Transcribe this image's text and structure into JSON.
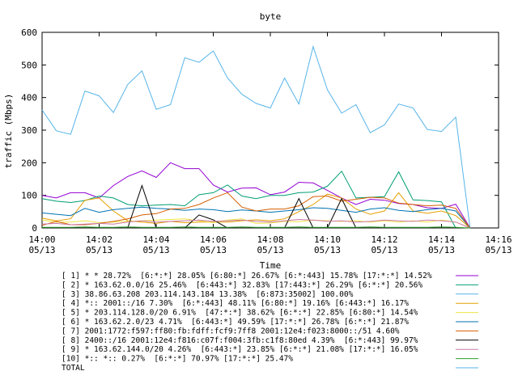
{
  "chart_data": {
    "type": "line",
    "title": "byte",
    "xlabel": "Time",
    "ylabel": "traffic (Mbps)",
    "ylim": [
      0,
      600
    ],
    "y_ticks": [
      0,
      100,
      200,
      300,
      400,
      500,
      600
    ],
    "x_ticks": [
      {
        "time": "14:00",
        "date": "05/13"
      },
      {
        "time": "14:02",
        "date": "05/13"
      },
      {
        "time": "14:04",
        "date": "05/13"
      },
      {
        "time": "14:06",
        "date": "05/13"
      },
      {
        "time": "14:08",
        "date": "05/13"
      },
      {
        "time": "14:10",
        "date": "05/13"
      },
      {
        "time": "14:12",
        "date": "05/13"
      },
      {
        "time": "14:14",
        "date": "05/13"
      },
      {
        "time": "14:16",
        "date": "05/13"
      }
    ],
    "x_minutes": [
      "14:00",
      "14:00:30",
      "14:01",
      "14:01:30",
      "14:02",
      "14:02:30",
      "14:03",
      "14:03:30",
      "14:04",
      "14:04:30",
      "14:05",
      "14:05:30",
      "14:06",
      "14:06:30",
      "14:07",
      "14:07:30",
      "14:08",
      "14:08:30",
      "14:09",
      "14:09:30",
      "14:10",
      "14:10:30",
      "14:11",
      "14:11:30",
      "14:12",
      "14:12:30",
      "14:13",
      "14:13:30",
      "14:14",
      "14:14:30",
      "14:15"
    ],
    "grid": false,
    "legend_position": "bottom",
    "series": [
      {
        "name": "[ 1] * * 28.72%  [6:*:*] 28.05% [6:80:*] 26.67% [6:*:443] 15.78% [17:*:*] 14.52%",
        "color": "#9400d3",
        "values": [
          100,
          92,
          108,
          108,
          92,
          130,
          158,
          175,
          155,
          200,
          182,
          182,
          132,
          110,
          122,
          123,
          102,
          110,
          140,
          138,
          115,
          92,
          72,
          88,
          85,
          75,
          72,
          62,
          60,
          73,
          0
        ]
      },
      {
        "name": "[ 2] * 163.62.0.0/16 25.46%  [6:443:*] 32.83% [17:443:*] 26.29% [6:*:*] 20.56%",
        "color": "#009e73",
        "values": [
          90,
          82,
          78,
          84,
          98,
          92,
          72,
          68,
          70,
          72,
          68,
          102,
          108,
          132,
          98,
          90,
          100,
          100,
          108,
          110,
          128,
          174,
          92,
          94,
          96,
          172,
          86,
          84,
          80,
          0,
          0
        ]
      },
      {
        "name": "[ 3] 38.86.63.208 203.114.143.184 13.38%  [6:873:35002] 100.00%",
        "color": "#56b4e9",
        "values": [
          362,
          298,
          287,
          420,
          405,
          354,
          440,
          482,
          364,
          378,
          522,
          508,
          543,
          460,
          410,
          382,
          368,
          460,
          380,
          556,
          424,
          352,
          378,
          292,
          316,
          380,
          368,
          302,
          296,
          340,
          0
        ]
      },
      {
        "name": "[ 4] *:: 2001::/16 7.30%  [6:*:443] 48.11% [6:80:*] 19.16% [6:443:*] 16.17%",
        "color": "#e69f00",
        "values": [
          30,
          22,
          28,
          85,
          92,
          52,
          22,
          18,
          14,
          20,
          16,
          18,
          18,
          18,
          22,
          25,
          22,
          28,
          50,
          72,
          104,
          92,
          58,
          42,
          52,
          108,
          52,
          45,
          52,
          38,
          0
        ]
      },
      {
        "name": "[ 5] * 203.114.128.0/20 6.91%  [47:*:*] 38.62% [6:*:*] 22.85% [6:80:*] 14.54%",
        "color": "#f0e442",
        "values": [
          24,
          18,
          18,
          22,
          16,
          18,
          20,
          22,
          24,
          26,
          28,
          22,
          16,
          24,
          28,
          14,
          15,
          20,
          19,
          24,
          22,
          20,
          22,
          18,
          22,
          18,
          22,
          18,
          24,
          18,
          0
        ]
      },
      {
        "name": "[ 6] * 163.62.2.0/23 4.71%  [6:443:*] 49.59% [17:*:*] 26.78% [6:*:*] 21.87%",
        "color": "#0072b2",
        "values": [
          46,
          42,
          38,
          60,
          48,
          56,
          60,
          64,
          60,
          58,
          54,
          58,
          56,
          50,
          55,
          52,
          48,
          52,
          56,
          62,
          60,
          54,
          48,
          58,
          62,
          54,
          50,
          56,
          60,
          52,
          0
        ]
      },
      {
        "name": "[ 7] 2001:1772:f597:ff80:fb:fdff:fcf9:7ff8 2001:12e4:f023:8000::/51 4.60%",
        "color": "#d55e00",
        "values": [
          8,
          20,
          10,
          10,
          14,
          20,
          28,
          40,
          44,
          58,
          60,
          72,
          92,
          108,
          64,
          52,
          58,
          58,
          68,
          96,
          98,
          82,
          88,
          94,
          92,
          76,
          72,
          68,
          70,
          60,
          0
        ]
      },
      {
        "name": "[ 8] 2400::/16 2001:12e4:f816:c07f:f004:3fb:c1f8:80ed 4.39%  [6:*:443] 99.97%",
        "color": "#000000",
        "values": [
          0,
          0,
          0,
          0,
          0,
          0,
          0,
          130,
          0,
          0,
          0,
          40,
          25,
          0,
          0,
          0,
          0,
          0,
          90,
          0,
          0,
          90,
          0,
          0,
          0,
          0,
          0,
          0,
          0,
          0,
          0
        ]
      },
      {
        "name": "[ 9] * 163.62.144.0/20 4.26%  [6:443:*] 23.85% [6:*:*] 21.08% [17:*:*] 16.05%",
        "color": "#cc79a7",
        "values": [
          12,
          14,
          10,
          12,
          14,
          12,
          18,
          22,
          18,
          20,
          22,
          24,
          20,
          22,
          24,
          20,
          18,
          22,
          26,
          24,
          20,
          22,
          18,
          20,
          24,
          22,
          20,
          24,
          22,
          18,
          0
        ]
      },
      {
        "name": "[10] *:: *:: 0.27%  [6:*:*] 70.97% [17:*:*] 25.47%",
        "color": "#2ca02c",
        "values": [
          2,
          2,
          2,
          3,
          2,
          2,
          3,
          2,
          2,
          2,
          3,
          2,
          2,
          2,
          3,
          2,
          2,
          2,
          3,
          2,
          2,
          2,
          2,
          3,
          2,
          2,
          2,
          2,
          3,
          2,
          0
        ]
      },
      {
        "name": "TOTAL",
        "color": "#56b4e9",
        "values": []
      }
    ]
  }
}
